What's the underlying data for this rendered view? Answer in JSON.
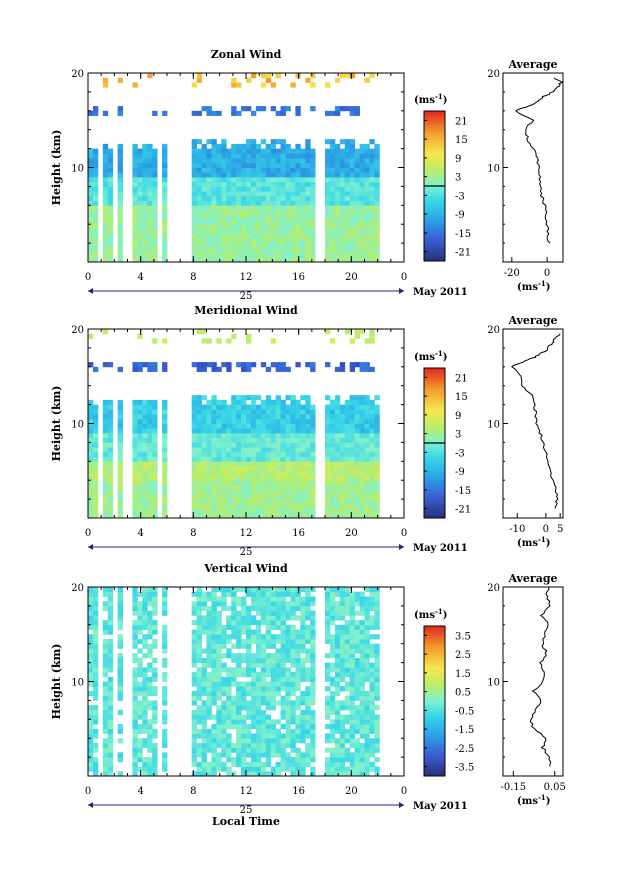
{
  "chart_data": [
    {
      "type": "heatmap",
      "title": "Zonal Wind",
      "ylabel": "Height (km)",
      "x_ticks": [
        "0",
        "4",
        "8",
        "12",
        "16",
        "20",
        "0"
      ],
      "y_ticks": [
        "20",
        "10"
      ],
      "date_label": "25",
      "month_label": "May 2011",
      "colorbar": {
        "unit": "(ms",
        "unit_exp": "-1",
        "unit_close": ")",
        "ticks": [
          "21",
          "15",
          "9",
          "3",
          "-3",
          "-9",
          "-15",
          "-21"
        ],
        "range": [
          -24,
          24
        ]
      },
      "average": {
        "title": "Average",
        "y_ticks": [
          "20",
          "10"
        ],
        "x_ticks": [
          "-20",
          "0"
        ],
        "xlim": [
          -25,
          9
        ],
        "unit": "(ms",
        "unit_exp": "-1",
        "unit_close": ")",
        "profile": [
          [
            2,
            1
          ],
          [
            3,
            0.5
          ],
          [
            4,
            0
          ],
          [
            5,
            -0.5
          ],
          [
            6,
            -1.5
          ],
          [
            7,
            -3
          ],
          [
            8,
            -4
          ],
          [
            9,
            -4
          ],
          [
            10,
            -5
          ],
          [
            11,
            -6
          ],
          [
            12,
            -8
          ],
          [
            13,
            -11
          ],
          [
            14,
            -12
          ],
          [
            15,
            -8
          ],
          [
            16,
            -18
          ],
          [
            16.5,
            -10
          ],
          [
            17,
            -5
          ],
          [
            17.5,
            -2
          ],
          [
            18,
            3
          ],
          [
            18.5,
            6
          ],
          [
            19,
            8
          ],
          [
            19.5,
            4
          ]
        ]
      }
    },
    {
      "type": "heatmap",
      "title": "Meridional Wind",
      "ylabel": "Height (km)",
      "x_ticks": [
        "0",
        "4",
        "8",
        "12",
        "16",
        "20",
        "0"
      ],
      "y_ticks": [
        "20",
        "10"
      ],
      "date_label": "25",
      "month_label": "May 2011",
      "colorbar": {
        "unit": "(ms",
        "unit_exp": "-1",
        "unit_close": ")",
        "ticks": [
          "21",
          "15",
          "9",
          "3",
          "-3",
          "-9",
          "-15",
          "-21"
        ],
        "range": [
          -24,
          24
        ]
      },
      "average": {
        "title": "Average",
        "y_ticks": [
          "20",
          "10"
        ],
        "x_ticks": [
          "-10",
          "0",
          "5"
        ],
        "xlim": [
          -15,
          6
        ],
        "unit": "(ms",
        "unit_exp": "-1",
        "unit_close": ")",
        "profile": [
          [
            1,
            3
          ],
          [
            2,
            4
          ],
          [
            3,
            3.5
          ],
          [
            4,
            2.5
          ],
          [
            5,
            1.5
          ],
          [
            6,
            1
          ],
          [
            7,
            0
          ],
          [
            8,
            -1
          ],
          [
            9,
            -2
          ],
          [
            10,
            -3
          ],
          [
            11,
            -3.5
          ],
          [
            12,
            -4
          ],
          [
            13,
            -5
          ],
          [
            14,
            -8
          ],
          [
            15,
            -9
          ],
          [
            16,
            -12
          ],
          [
            16.5,
            -8
          ],
          [
            17,
            -4
          ],
          [
            17.5,
            -1
          ],
          [
            18,
            1
          ],
          [
            18.5,
            2
          ],
          [
            19,
            3
          ],
          [
            19.5,
            5
          ]
        ]
      }
    },
    {
      "type": "heatmap",
      "title": "Vertical Wind",
      "ylabel": "Height (km)",
      "xlabel": "Local Time",
      "x_ticks": [
        "0",
        "4",
        "8",
        "12",
        "16",
        "20",
        "0"
      ],
      "y_ticks": [
        "20",
        "10"
      ],
      "date_label": "25",
      "month_label": "May 2011",
      "colorbar": {
        "unit": "(ms",
        "unit_exp": "-1",
        "unit_close": ")",
        "ticks": [
          "3.5",
          "2.5",
          "1.5",
          "0.5",
          "-0.5",
          "-1.5",
          "-2.5",
          "-3.5"
        ],
        "range": [
          -4,
          4
        ]
      },
      "average": {
        "title": "Average",
        "y_ticks": [
          "20",
          "10"
        ],
        "x_ticks": [
          "-0.15",
          "0.05"
        ],
        "xlim": [
          -0.2,
          0.09
        ],
        "unit": "(ms",
        "unit_exp": "-1",
        "unit_close": ")",
        "profile": [
          [
            1,
            0.02
          ],
          [
            2,
            0.03
          ],
          [
            3,
            -0.01
          ],
          [
            4,
            0.01
          ],
          [
            5,
            -0.05
          ],
          [
            6,
            -0.07
          ],
          [
            7,
            -0.04
          ],
          [
            8,
            -0.02
          ],
          [
            9,
            -0.05
          ],
          [
            10,
            -0.01
          ],
          [
            11,
            0
          ],
          [
            12,
            -0.02
          ],
          [
            13,
            0.01
          ],
          [
            14,
            -0.01
          ],
          [
            15,
            0
          ],
          [
            16,
            0.02
          ],
          [
            17,
            -0.02
          ],
          [
            18,
            0.03
          ],
          [
            19,
            0.01
          ],
          [
            20,
            0.02
          ]
        ]
      }
    }
  ]
}
